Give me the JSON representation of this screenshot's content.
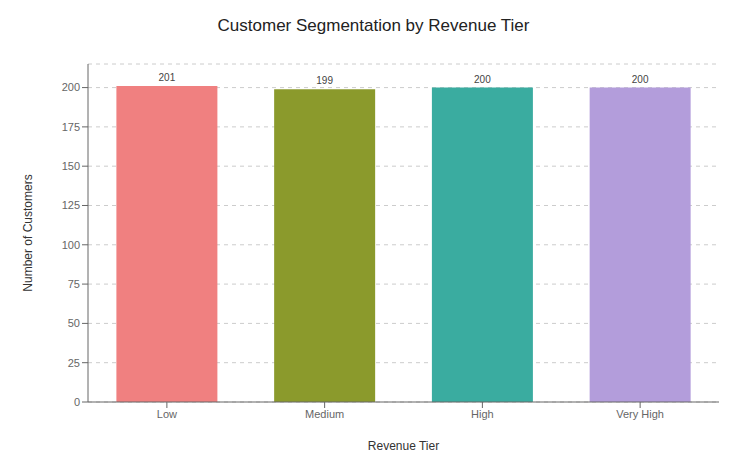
{
  "chart_data": {
    "type": "bar",
    "title": "Customer Segmentation by Revenue Tier",
    "categories": [
      "Low",
      "Medium",
      "High",
      "Very High"
    ],
    "values": [
      201,
      199,
      200,
      200
    ],
    "colors": [
      "#F08080",
      "#8B9A2C",
      "#3AACA0",
      "#B39DDB"
    ],
    "xlabel": "Revenue Tier",
    "ylabel": "Number of Customers",
    "ylim": [
      0,
      215
    ],
    "yticks": [
      0,
      25,
      50,
      75,
      100,
      125,
      150,
      175,
      200
    ],
    "grid": true,
    "data_labels": true
  }
}
